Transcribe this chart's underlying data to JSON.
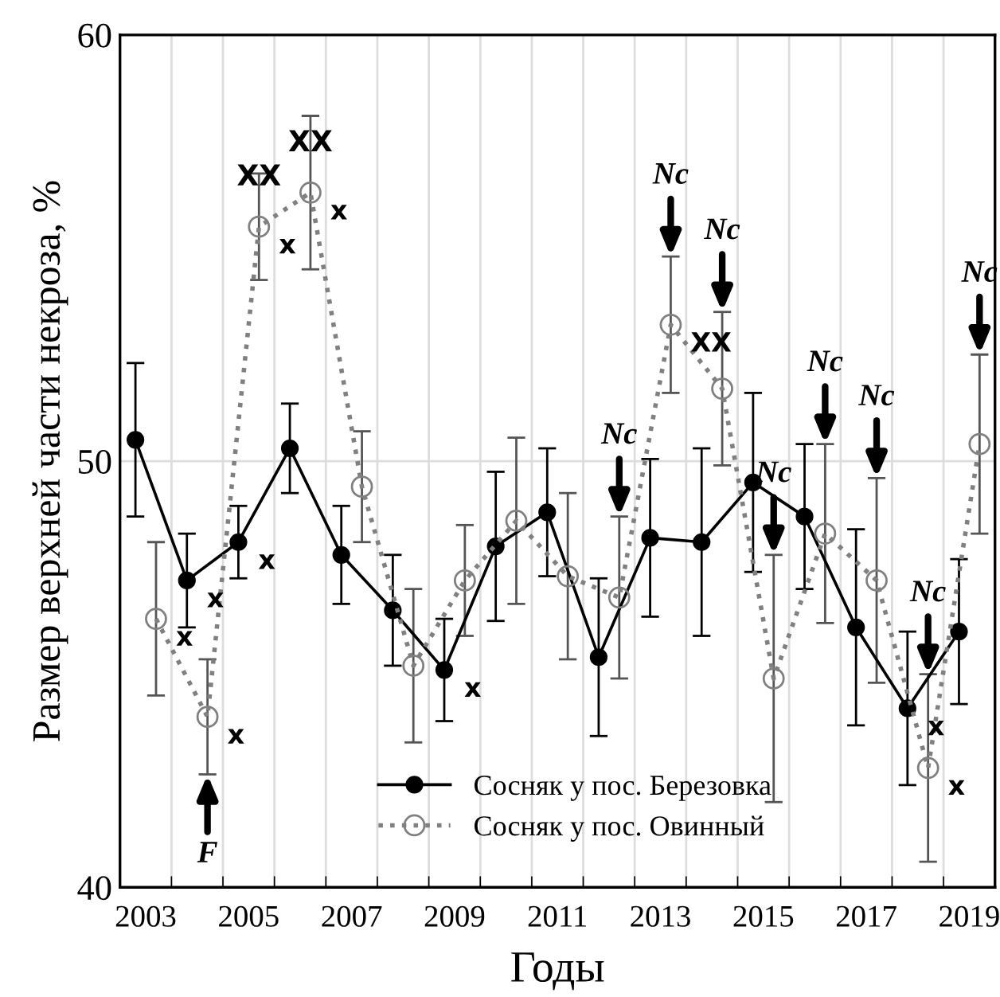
{
  "chart_data": {
    "type": "line",
    "xlabel": "Годы",
    "ylabel": "Размер верхней части некроза, %",
    "xlim": [
      2002.5,
      2019.5
    ],
    "ylim": [
      40,
      60
    ],
    "yticks": [
      40,
      50,
      60
    ],
    "xticks": [
      {
        "value": 2003,
        "label": "2003"
      },
      {
        "value": 2005,
        "label": "2005"
      },
      {
        "value": 2007,
        "label": "2007"
      },
      {
        "value": 2009,
        "label": "2009"
      },
      {
        "value": 2011,
        "label": "2011"
      },
      {
        "value": 2013,
        "label": "2013"
      },
      {
        "value": 2015,
        "label": "2015"
      },
      {
        "value": 2017,
        "label": "2017"
      },
      {
        "value": 2019,
        "label": "2019"
      },
      {
        "value": 2003.5,
        "label": null
      },
      {
        "value": 2004.5,
        "label": null
      },
      {
        "value": 2005.5,
        "label": null
      },
      {
        "value": 2006.5,
        "label": null
      },
      {
        "value": 2007.5,
        "label": null
      },
      {
        "value": 2008.5,
        "label": null
      },
      {
        "value": 2009.5,
        "label": null
      },
      {
        "value": 2010.5,
        "label": null
      },
      {
        "value": 2011.5,
        "label": null
      },
      {
        "value": 2012.5,
        "label": null
      },
      {
        "value": 2013.5,
        "label": null
      },
      {
        "value": 2014.5,
        "label": null
      },
      {
        "value": 2015.5,
        "label": null
      },
      {
        "value": 2016.5,
        "label": null
      },
      {
        "value": 2017.5,
        "label": null
      },
      {
        "value": 2018.5,
        "label": null
      }
    ],
    "grid": true,
    "legend": "bottom",
    "marker": "circle",
    "series": [
      {
        "name": "Сосняк у пос. Березовка",
        "color": "#000000",
        "line_style": "solid",
        "x": [
          2002.8,
          2003.8,
          2004.8,
          2005.8,
          2006.8,
          2007.8,
          2008.8,
          2009.8,
          2010.8,
          2011.8,
          2012.8,
          2013.8,
          2014.8,
          2015.8,
          2016.8,
          2017.8,
          2018.8
        ],
        "values": [
          50.5,
          47.2,
          48.1,
          50.3,
          47.8,
          46.5,
          45.1,
          48.0,
          48.8,
          45.4,
          48.2,
          48.1,
          49.5,
          48.7,
          46.1,
          44.2,
          46.0
        ],
        "errors": [
          1.8,
          1.1,
          0.85,
          1.05,
          1.15,
          1.3,
          1.2,
          1.75,
          1.5,
          1.85,
          1.85,
          2.2,
          2.1,
          1.7,
          2.3,
          1.8,
          1.7
        ]
      },
      {
        "name": "Сосняк у пос. Овинный",
        "color": "#808080",
        "line_style": "dotted",
        "x": [
          2003.2,
          2004.2,
          2005.2,
          2006.2,
          2007.2,
          2008.2,
          2009.2,
          2010.2,
          2011.2,
          2012.2,
          2013.2,
          2014.2,
          2015.2,
          2016.2,
          2017.2,
          2018.2,
          2019.2
        ],
        "values": [
          46.3,
          44.0,
          55.5,
          56.3,
          49.4,
          45.2,
          47.2,
          48.6,
          47.3,
          46.8,
          53.2,
          51.7,
          44.9,
          48.3,
          47.2,
          42.8,
          50.4
        ],
        "errors": [
          1.8,
          1.35,
          1.25,
          1.8,
          1.3,
          1.8,
          1.3,
          1.95,
          1.95,
          1.9,
          1.6,
          1.8,
          2.9,
          2.1,
          2.4,
          2.2,
          2.1
        ]
      }
    ],
    "annotations": [
      {
        "text": "x",
        "x": 2003.2,
        "y": 46.3
      },
      {
        "text": "x",
        "x": 2003.8,
        "y": 47.2
      },
      {
        "text": "x",
        "x": 2004.2,
        "y": 44.0
      },
      {
        "text": "F",
        "x": 2004.2,
        "y": 42.65
      },
      {
        "text": "x",
        "x": 2004.8,
        "y": 48.1
      },
      {
        "text": "x",
        "x": 2005.2,
        "y": 55.5
      },
      {
        "text": "XX",
        "x": 2005.2,
        "y": 55.5
      },
      {
        "text": "x",
        "x": 2006.2,
        "y": 56.3
      },
      {
        "text": "XX",
        "x": 2006.2,
        "y": 56.3
      },
      {
        "text": "x",
        "x": 2008.8,
        "y": 45.1
      },
      {
        "text": "Nc",
        "x": 2012.2,
        "y": 48.7
      },
      {
        "text": "XX",
        "x": 2013.2,
        "y": 53.2
      },
      {
        "text": "Nc",
        "x": 2013.2,
        "y": 54.8
      },
      {
        "text": "Nc",
        "x": 2014.2,
        "y": 53.5
      },
      {
        "text": "Nc",
        "x": 2015.2,
        "y": 47.8
      },
      {
        "text": "Nc",
        "x": 2016.2,
        "y": 50.4
      },
      {
        "text": "Nc",
        "x": 2017.2,
        "y": 49.6
      },
      {
        "text": "x",
        "x": 2017.8,
        "y": 44.2
      },
      {
        "text": "Nc",
        "x": 2018.2,
        "y": 45.0
      },
      {
        "text": "x",
        "x": 2018.2,
        "y": 42.8
      },
      {
        "text": "Nc",
        "x": 2019.2,
        "y": 52.5
      }
    ]
  }
}
